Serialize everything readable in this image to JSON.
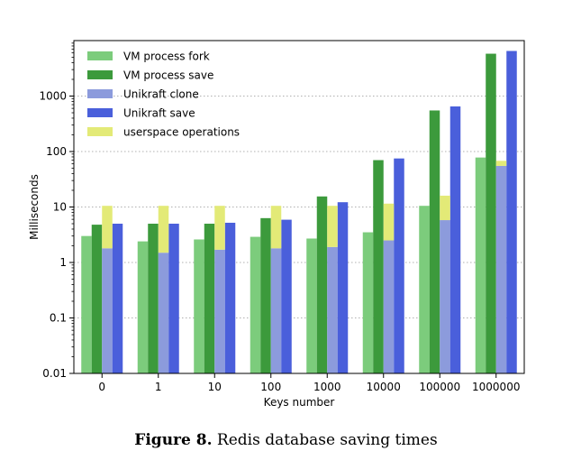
{
  "chart_data": {
    "type": "bar",
    "scale": "log",
    "categories": [
      "0",
      "1",
      "10",
      "100",
      "1000",
      "10000",
      "100000",
      "1000000"
    ],
    "xlabel": "Keys number",
    "ylabel": "Milliseconds",
    "ylim": [
      0.01,
      10000
    ],
    "yticks": [
      {
        "value": 0.01,
        "label": "0.01"
      },
      {
        "value": 0.1,
        "label": "0.1"
      },
      {
        "value": 1,
        "label": "1"
      },
      {
        "value": 10,
        "label": "10"
      },
      {
        "value": 100,
        "label": "100"
      },
      {
        "value": 1000,
        "label": "1000"
      }
    ],
    "grid": "horizontal dotted",
    "legend_position": "top-left",
    "series": [
      {
        "name": "VM process fork",
        "color": "#7ccc7c",
        "values": [
          3.0,
          2.4,
          2.6,
          2.9,
          2.7,
          3.5,
          10.5,
          78
        ]
      },
      {
        "name": "VM process save",
        "color": "#3c9a3c",
        "values": [
          4.8,
          5.0,
          5.0,
          6.3,
          15.5,
          70,
          550,
          5800
        ]
      },
      {
        "name": "Unikraft clone",
        "color": "#8c9bdc",
        "values": [
          1.8,
          1.5,
          1.7,
          1.8,
          1.9,
          2.5,
          5.8,
          55
        ]
      },
      {
        "name": "Unikraft save",
        "color": "#4a5fdb",
        "values": [
          5.0,
          5.0,
          5.2,
          5.9,
          12.2,
          75,
          650,
          6500
        ]
      }
    ],
    "overlay": {
      "name": "userspace operations",
      "color": "#e3ea77",
      "base": "Unikraft clone",
      "top": [
        10.5,
        10.5,
        10.5,
        10.5,
        10.5,
        11.5,
        16,
        68
      ]
    }
  },
  "caption": {
    "label": "Figure 8.",
    "text": " Redis database saving times"
  }
}
